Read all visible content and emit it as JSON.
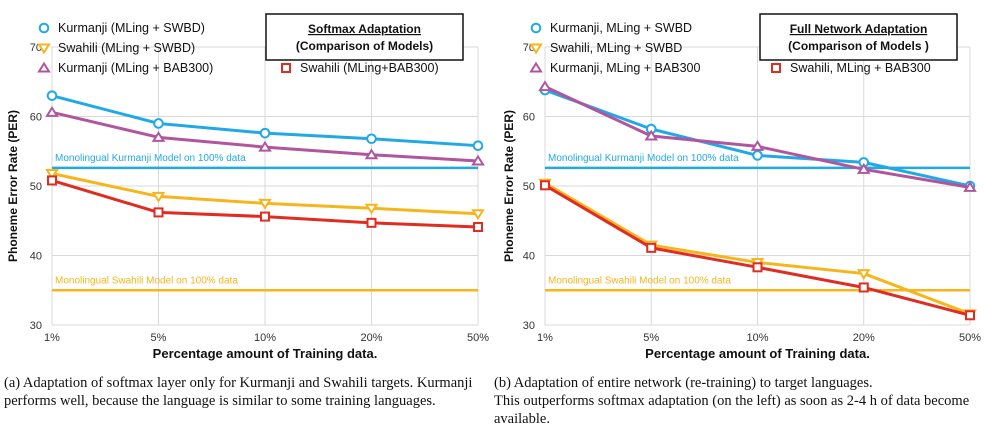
{
  "colors": {
    "kurmanji_swbd": "#21a9e6",
    "swahili_swbd": "#f7b51c",
    "kurmanji_bab": "#b0569e",
    "swahili_bab": "#e02d22",
    "baseline_kurmanji": "#21a9e6",
    "baseline_swahili": "#f7b51c",
    "grid": "#d9d9d9"
  },
  "chart_data": [
    {
      "type": "line",
      "title_lines": [
        "Softmax Adaptation",
        "(Comparison of Models)"
      ],
      "xlabel": "Percentage amount of Training data.",
      "ylabel": "Phoneme Error Rate (PER)",
      "categories": [
        "1%",
        "5%",
        "10%",
        "20%",
        "50%"
      ],
      "ylim": [
        30,
        70
      ],
      "yticks": [
        30,
        40,
        50,
        60,
        70
      ],
      "grid": true,
      "legend": [
        {
          "name": "Kurmanji (MLing + SWBD)",
          "color": "kurmanji_swbd",
          "marker": "circle"
        },
        {
          "name": "Swahili (MLing + SWBD)",
          "color": "swahili_swbd",
          "marker": "triangle-down"
        },
        {
          "name": "Kurmanji (MLing + BAB300)",
          "color": "kurmanji_bab",
          "marker": "triangle-up"
        },
        {
          "name": "Swahili (MLing+BAB300)",
          "color": "swahili_bab",
          "marker": "square"
        }
      ],
      "series": [
        {
          "name": "Kurmanji (MLing + SWBD)",
          "values": [
            63.0,
            59.0,
            57.6,
            56.8,
            55.8
          ]
        },
        {
          "name": "Swahili (MLing + SWBD)",
          "values": [
            51.8,
            48.5,
            47.5,
            46.8,
            46.0
          ]
        },
        {
          "name": "Kurmanji (MLing + BAB300)",
          "values": [
            60.6,
            57.0,
            55.6,
            54.5,
            53.6
          ]
        },
        {
          "name": "Swahili (MLing+BAB300)",
          "values": [
            50.8,
            46.2,
            45.6,
            44.7,
            44.1
          ]
        }
      ],
      "baselines": [
        {
          "label": "Monolingual Kurmanji Model on 100% data",
          "value": 52.6,
          "color": "baseline_kurmanji"
        },
        {
          "label": "Monolingual Swahili Model on 100% data",
          "value": 35.0,
          "color": "baseline_swahili"
        }
      ]
    },
    {
      "type": "line",
      "title_lines": [
        "Full Network Adaptation",
        "(Comparison of Models )"
      ],
      "xlabel": "Percentage amount of Training data.",
      "ylabel": "Phoneme Error Rate (PER)",
      "categories": [
        "1%",
        "5%",
        "10%",
        "20%",
        "50%"
      ],
      "ylim": [
        30,
        70
      ],
      "yticks": [
        30,
        40,
        50,
        60,
        70
      ],
      "grid": true,
      "legend": [
        {
          "name": "Kurmanji, MLing + SWBD",
          "color": "kurmanji_swbd",
          "marker": "circle"
        },
        {
          "name": "Swahili, MLing + SWBD",
          "color": "swahili_swbd",
          "marker": "triangle-down"
        },
        {
          "name": "Kurmanji, MLing + BAB300",
          "color": "kurmanji_bab",
          "marker": "triangle-up"
        },
        {
          "name": "Swahili, MLing + BAB300",
          "color": "swahili_bab",
          "marker": "square"
        }
      ],
      "series": [
        {
          "name": "Kurmanji, MLing + SWBD",
          "values": [
            63.8,
            58.2,
            54.4,
            53.4,
            50.0
          ]
        },
        {
          "name": "Swahili, MLing + SWBD",
          "values": [
            50.4,
            41.5,
            39.0,
            37.4,
            31.6
          ]
        },
        {
          "name": "Kurmanji, MLing + BAB300",
          "values": [
            64.3,
            57.2,
            55.7,
            52.4,
            49.8
          ]
        },
        {
          "name": "Swahili, MLing + BAB300",
          "values": [
            50.1,
            41.1,
            38.3,
            35.4,
            31.4
          ]
        }
      ],
      "baselines": [
        {
          "label": "Monolingual Kurmanji Model on 100% data",
          "value": 52.6,
          "color": "baseline_kurmanji"
        },
        {
          "label": "Monolingual Swahili Model on 100% data",
          "value": 35.0,
          "color": "baseline_swahili"
        }
      ]
    }
  ],
  "captions": [
    "(a) Adaptation of softmax layer only for Kurmanji and Swahili targets. Kurmanji performs well, because the language is similar to some training languages.",
    "(b) Adaptation of entire network (re-training) to target languages.\nThis outperforms softmax adaptation (on the left) as soon as 2-4 h of data become available."
  ]
}
